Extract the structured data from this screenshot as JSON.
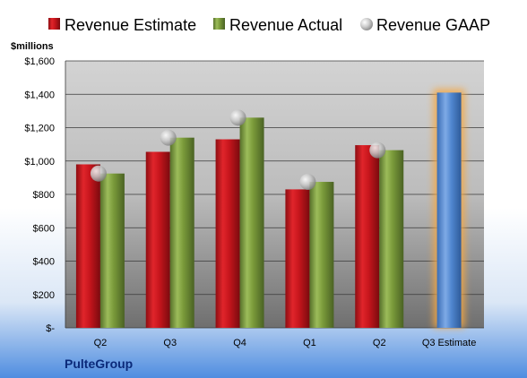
{
  "chart_data": {
    "type": "bar",
    "unit_label": "$millions",
    "company": "PulteGroup",
    "categories": [
      "Q2",
      "Q3",
      "Q4",
      "Q1",
      "Q2",
      "Q3 Estimate"
    ],
    "series": [
      {
        "name": "Revenue Estimate",
        "kind": "bar",
        "color": "#c8161d",
        "values": [
          980,
          1055,
          1130,
          830,
          1095,
          null
        ]
      },
      {
        "name": "Revenue Actual",
        "kind": "bar",
        "color": "#7a9a3a",
        "values": [
          925,
          1140,
          1260,
          875,
          1065,
          null
        ]
      },
      {
        "name": "Revenue GAAP",
        "kind": "marker",
        "color": "#b8b8b8",
        "values": [
          925,
          1140,
          1260,
          875,
          1065,
          null
        ]
      }
    ],
    "highlight": {
      "category": "Q3 Estimate",
      "value": 1410,
      "color": "#4f86cf",
      "glow_color": "#f5a742"
    },
    "y_ticks": [
      "$-",
      "$200",
      "$400",
      "$600",
      "$800",
      "$1,000",
      "$1,200",
      "$1,400",
      "$1,600"
    ],
    "ylim": [
      0,
      1600
    ],
    "grid": true,
    "legend_position": "top"
  }
}
